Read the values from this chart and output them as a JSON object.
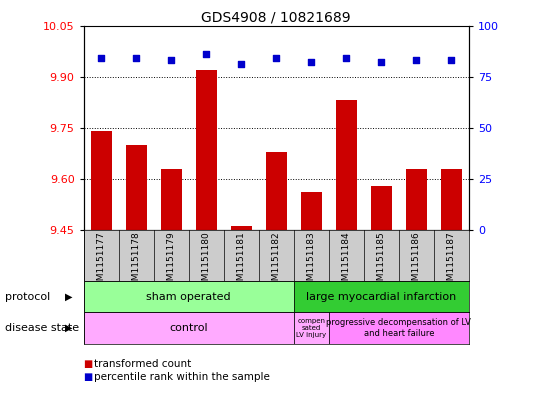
{
  "title": "GDS4908 / 10821689",
  "samples": [
    "GSM1151177",
    "GSM1151178",
    "GSM1151179",
    "GSM1151180",
    "GSM1151181",
    "GSM1151182",
    "GSM1151183",
    "GSM1151184",
    "GSM1151185",
    "GSM1151186",
    "GSM1151187"
  ],
  "bar_values": [
    9.74,
    9.7,
    9.63,
    9.92,
    9.46,
    9.68,
    9.56,
    9.83,
    9.58,
    9.63,
    9.63
  ],
  "scatter_values": [
    84,
    84,
    83,
    86,
    81,
    84,
    82,
    84,
    82,
    83,
    83
  ],
  "ylim_left": [
    9.45,
    10.05
  ],
  "ylim_right": [
    0,
    100
  ],
  "yticks_left": [
    9.45,
    9.6,
    9.75,
    9.9,
    10.05
  ],
  "yticks_right": [
    0,
    25,
    50,
    75,
    100
  ],
  "bar_color": "#cc0000",
  "scatter_color": "#0000cc",
  "sham_label": "sham operated",
  "sham_color": "#99ff99",
  "large_label": "large myocardial infarction",
  "large_color": "#33cc33",
  "control_label": "control",
  "control_color": "#ffaaff",
  "comp_label": "compen\nsated\nLV injury",
  "comp_color": "#ffaaff",
  "prog_label": "progressive decompensation of LV\nand heart failure",
  "prog_color": "#ff88ff",
  "legend_bar_label": "transformed count",
  "legend_scatter_label": "percentile rank within the sample",
  "protocol_label": "protocol",
  "disease_label": "disease state",
  "sample_bg": "#cccccc",
  "plot_bg_color": "#ffffff"
}
